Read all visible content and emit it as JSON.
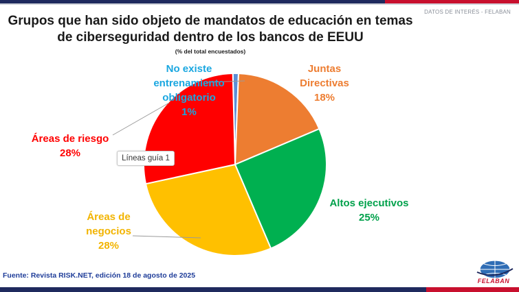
{
  "header": {
    "tagline": "DATOS DE INTERÉS - FELABAN",
    "title_line1": "Grupos que han sido objeto de mandatos de educación en temas",
    "title_line2": "de ciberseguridad dentro de los bancos de EEUU",
    "subtitle": "(% del total encuestados)"
  },
  "chart_data": {
    "type": "pie",
    "title": "Grupos que han sido objeto de mandatos de educación en temas de ciberseguridad dentro de los bancos de EEUU",
    "subtitle": "(% del total encuestados)",
    "slices": [
      {
        "label_lines": [
          "No existe",
          "entrenamiento",
          "obligatorio"
        ],
        "value": 1,
        "value_label": "1%",
        "color": "#5b8fd6",
        "label_color": "#1aa7e0"
      },
      {
        "label_lines": [
          "Juntas",
          "Directivas"
        ],
        "value": 18,
        "value_label": "18%",
        "color": "#ed7d31",
        "label_color": "#ed7d31"
      },
      {
        "label_lines": [
          "Altos ejecutivos"
        ],
        "value": 25,
        "value_label": "25%",
        "color": "#00b050",
        "label_color": "#00a14b"
      },
      {
        "label_lines": [
          "Áreas de",
          "negocios"
        ],
        "value": 28,
        "value_label": "28%",
        "color": "#ffc000",
        "label_color": "#f2b400"
      },
      {
        "label_lines": [
          "Áreas de riesgo"
        ],
        "value": 28,
        "value_label": "28%",
        "color": "#ff0000",
        "label_color": "#ff0000"
      }
    ]
  },
  "tooltip": {
    "text": "Líneas guía 1"
  },
  "footer": {
    "source": "Fuente: Revista RISK.NET, edición 18 de agosto de 2025",
    "logo_text": "FELABAN"
  }
}
